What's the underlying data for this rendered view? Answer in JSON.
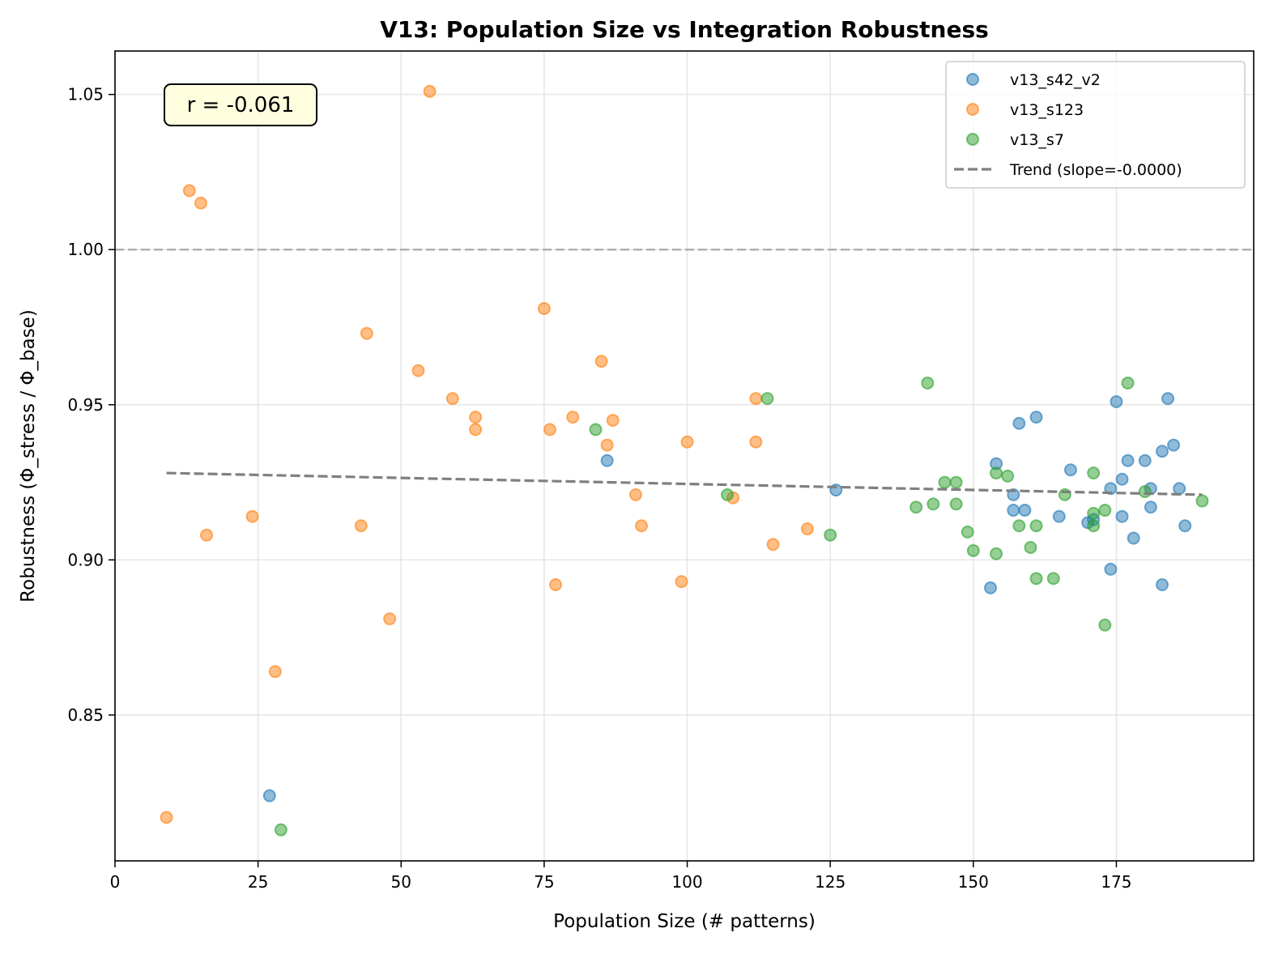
{
  "chart_data": {
    "type": "scatter",
    "title": "V13: Population Size vs Integration Robustness",
    "xlabel": "Population Size (# patterns)",
    "ylabel": "Robustness (Φ_stress / Φ_base)",
    "xlim": [
      0,
      199
    ],
    "ylim": [
      0.803,
      1.064
    ],
    "x_ticks": [
      0,
      25,
      50,
      75,
      100,
      125,
      150,
      175
    ],
    "x_tick_labels": [
      "0",
      "25",
      "50",
      "75",
      "100",
      "125",
      "150",
      "175"
    ],
    "y_ticks": [
      0.85,
      0.9,
      0.95,
      1.0,
      1.05
    ],
    "y_tick_labels": [
      "0.85",
      "0.90",
      "0.95",
      "1.00",
      "1.05"
    ],
    "grid": true,
    "legend_position": "top-right",
    "reference_line": {
      "y": 1.0,
      "color": "#b0b0b0",
      "style": "dashed"
    },
    "annotation": {
      "text": "r = -0.061",
      "position": "top-left",
      "background": "#ffffe0"
    },
    "trend": {
      "label": "Trend (slope=-0.0000)",
      "x": [
        9,
        190
      ],
      "y": [
        0.928,
        0.921
      ],
      "color": "#7f7f7f",
      "style": "dashed"
    },
    "series": [
      {
        "name": "v13_s42_v2",
        "color": "#1f77b4",
        "points": [
          [
            27,
            0.824
          ],
          [
            86,
            0.932
          ],
          [
            126,
            0.9225
          ],
          [
            153,
            0.891
          ],
          [
            154,
            0.931
          ],
          [
            157,
            0.921
          ],
          [
            157,
            0.916
          ],
          [
            158,
            0.944
          ],
          [
            159,
            0.916
          ],
          [
            161,
            0.946
          ],
          [
            165,
            0.914
          ],
          [
            167,
            0.929
          ],
          [
            170,
            0.912
          ],
          [
            171,
            0.913
          ],
          [
            174,
            0.897
          ],
          [
            174,
            0.923
          ],
          [
            175,
            0.951
          ],
          [
            176,
            0.926
          ],
          [
            176,
            0.914
          ],
          [
            177,
            0.932
          ],
          [
            178,
            0.907
          ],
          [
            180,
            0.932
          ],
          [
            181,
            0.923
          ],
          [
            181,
            0.917
          ],
          [
            183,
            0.935
          ],
          [
            183,
            0.892
          ],
          [
            184,
            0.952
          ],
          [
            185,
            0.937
          ],
          [
            186,
            0.923
          ],
          [
            187,
            0.911
          ]
        ]
      },
      {
        "name": "v13_s123",
        "color": "#ff7f0e",
        "points": [
          [
            9,
            0.817
          ],
          [
            13,
            1.019
          ],
          [
            15,
            1.015
          ],
          [
            16,
            0.908
          ],
          [
            24,
            0.914
          ],
          [
            28,
            0.864
          ],
          [
            43,
            0.911
          ],
          [
            44,
            0.973
          ],
          [
            48,
            0.881
          ],
          [
            53,
            0.961
          ],
          [
            55,
            1.051
          ],
          [
            59,
            0.952
          ],
          [
            63,
            0.946
          ],
          [
            63,
            0.942
          ],
          [
            75,
            0.981
          ],
          [
            76,
            0.942
          ],
          [
            77,
            0.892
          ],
          [
            80,
            0.946
          ],
          [
            85,
            0.964
          ],
          [
            86,
            0.937
          ],
          [
            87,
            0.945
          ],
          [
            91,
            0.921
          ],
          [
            92,
            0.911
          ],
          [
            99,
            0.893
          ],
          [
            100,
            0.938
          ],
          [
            108,
            0.92
          ],
          [
            112,
            0.952
          ],
          [
            112,
            0.938
          ],
          [
            115,
            0.905
          ],
          [
            121,
            0.91
          ]
        ]
      },
      {
        "name": "v13_s7",
        "color": "#2ca02c",
        "points": [
          [
            29,
            0.813
          ],
          [
            84,
            0.942
          ],
          [
            107,
            0.921
          ],
          [
            114,
            0.952
          ],
          [
            125,
            0.908
          ],
          [
            140,
            0.917
          ],
          [
            142,
            0.957
          ],
          [
            143,
            0.918
          ],
          [
            145,
            0.925
          ],
          [
            147,
            0.925
          ],
          [
            147,
            0.918
          ],
          [
            149,
            0.909
          ],
          [
            150,
            0.903
          ],
          [
            154,
            0.902
          ],
          [
            154,
            0.928
          ],
          [
            156,
            0.927
          ],
          [
            158,
            0.911
          ],
          [
            160,
            0.904
          ],
          [
            161,
            0.911
          ],
          [
            161,
            0.894
          ],
          [
            164,
            0.894
          ],
          [
            166,
            0.921
          ],
          [
            171,
            0.928
          ],
          [
            171,
            0.915
          ],
          [
            171,
            0.911
          ],
          [
            173,
            0.916
          ],
          [
            173,
            0.879
          ],
          [
            177,
            0.957
          ],
          [
            180,
            0.922
          ],
          [
            190,
            0.919
          ]
        ]
      }
    ]
  }
}
